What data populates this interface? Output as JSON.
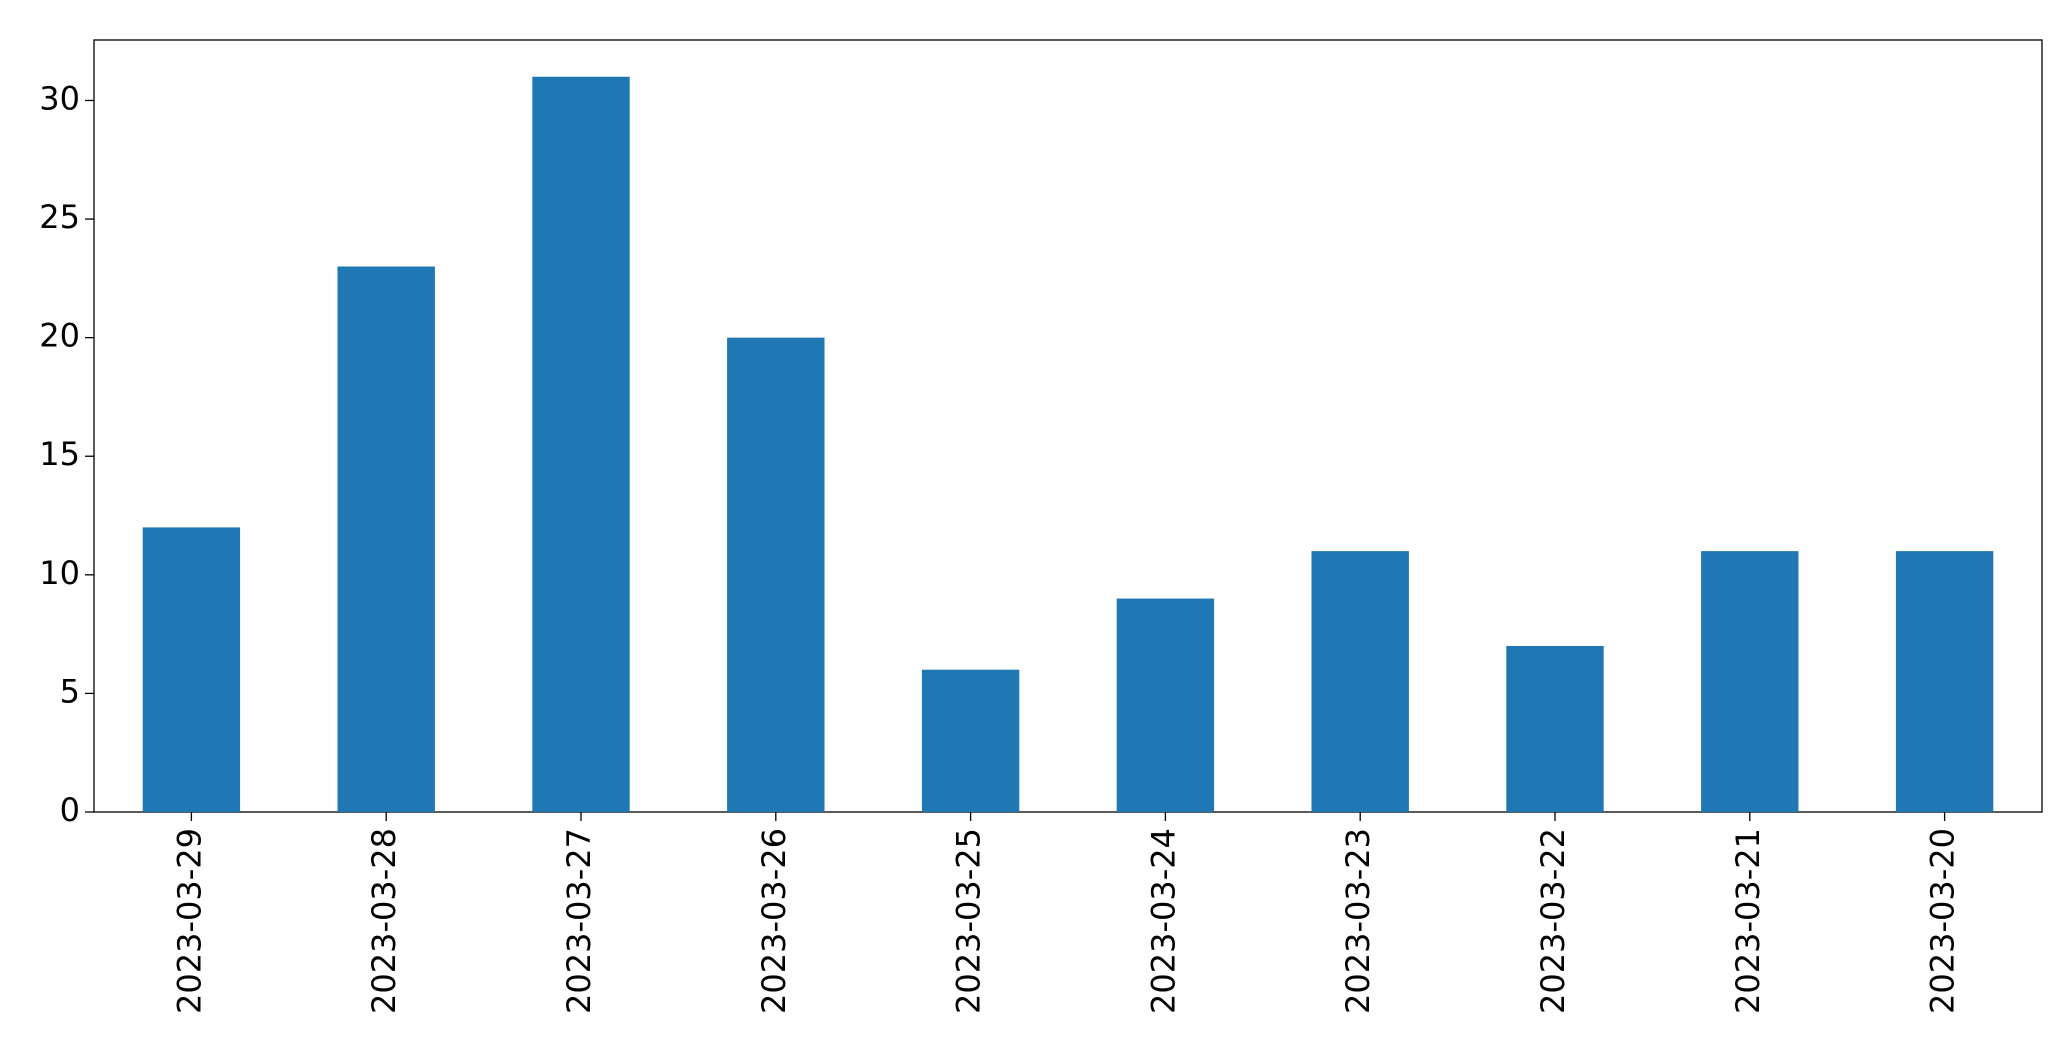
{
  "chart_data": {
    "type": "bar",
    "categories": [
      "2023-03-29",
      "2023-03-28",
      "2023-03-27",
      "2023-03-26",
      "2023-03-25",
      "2023-03-24",
      "2023-03-23",
      "2023-03-22",
      "2023-03-21",
      "2023-03-20"
    ],
    "values": [
      12,
      23,
      31,
      20,
      6,
      9,
      11,
      7,
      11,
      11
    ],
    "color": "#1f77b4",
    "ylim": [
      0,
      32.55
    ],
    "yticks": [
      0,
      5,
      10,
      15,
      20,
      25,
      30
    ],
    "grid": false
  }
}
